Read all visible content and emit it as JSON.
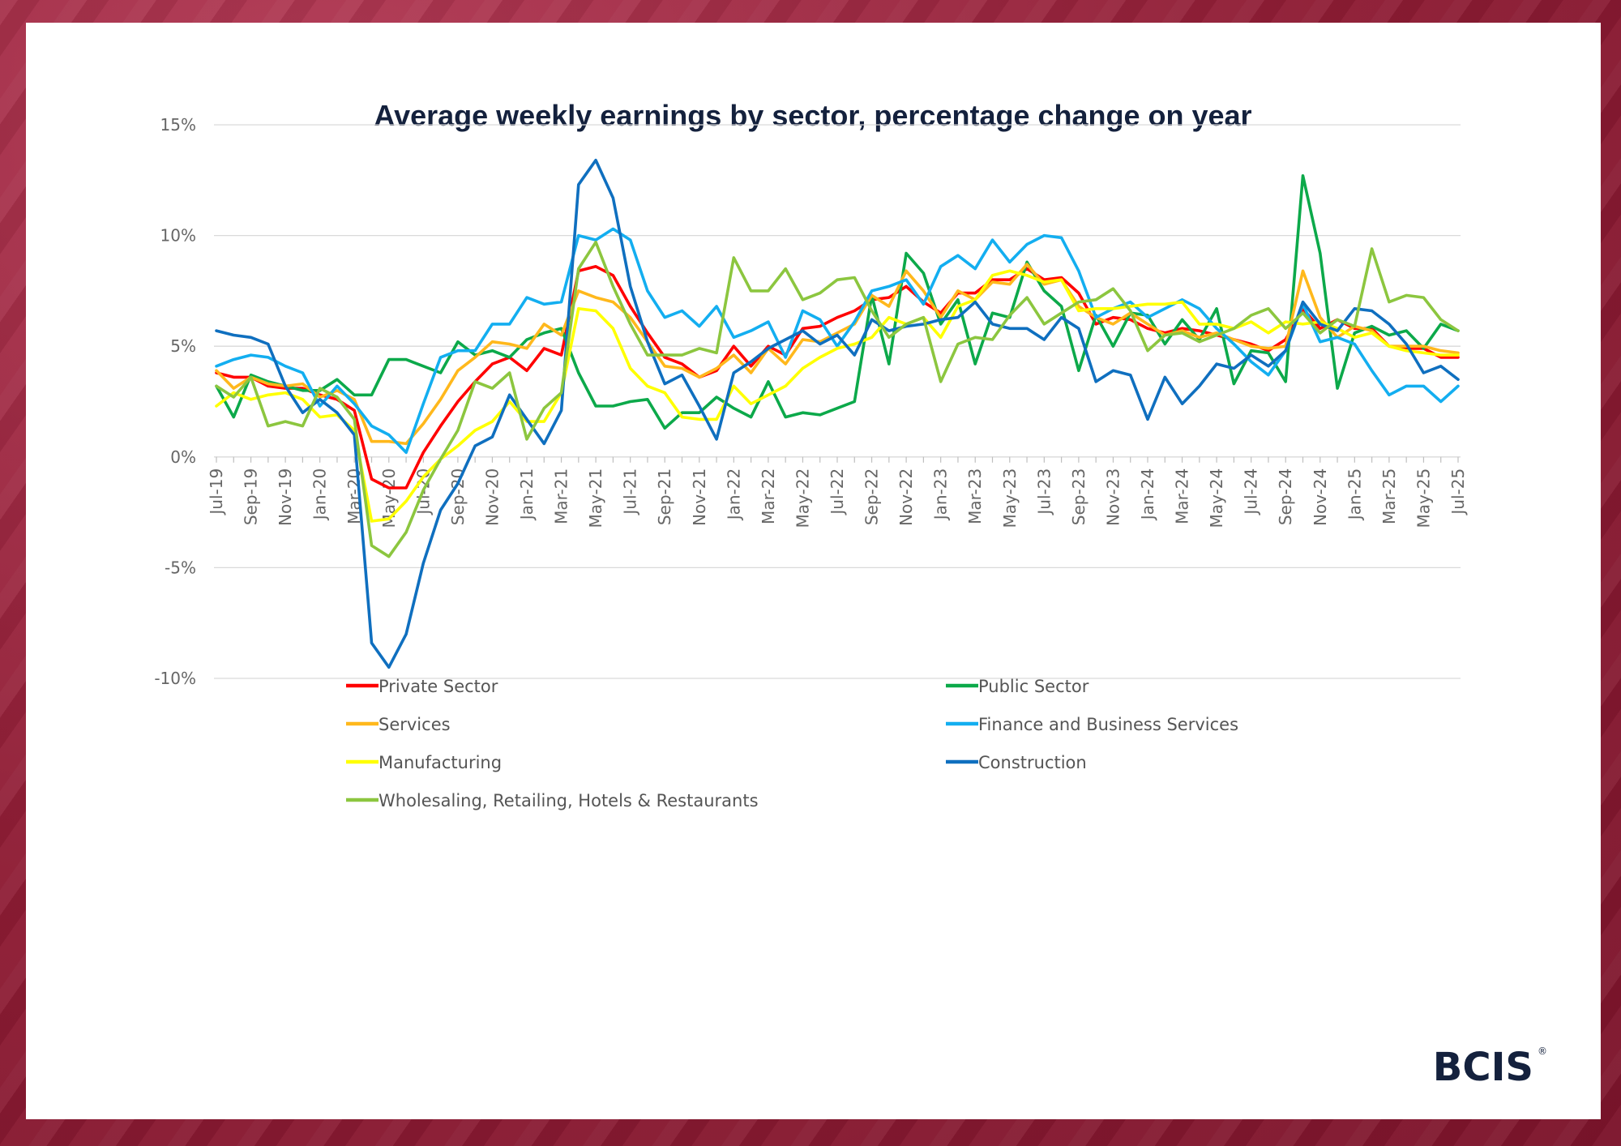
{
  "chart_data": {
    "type": "line",
    "title": "Average weekly earnings by sector, percentage change on year",
    "ylim": [
      -10,
      15
    ],
    "yticks": [
      15,
      10,
      5,
      0,
      -5,
      -10
    ],
    "ytick_labels": [
      "15%",
      "10%",
      "5%",
      "0%",
      "-5%",
      "-10%"
    ],
    "x": [
      "Jul-19",
      "Aug-19",
      "Sep-19",
      "Oct-19",
      "Nov-19",
      "Dec-19",
      "Jan-20",
      "Feb-20",
      "Mar-20",
      "Apr-20",
      "May-20",
      "Jun-20",
      "Jul-20",
      "Aug-20",
      "Sep-20",
      "Oct-20",
      "Nov-20",
      "Dec-20",
      "Jan-21",
      "Feb-21",
      "Mar-21",
      "Apr-21",
      "May-21",
      "Jun-21",
      "Jul-21",
      "Aug-21",
      "Sep-21",
      "Oct-21",
      "Nov-21",
      "Dec-21",
      "Jan-22",
      "Feb-22",
      "Mar-22",
      "Apr-22",
      "May-22",
      "Jun-22",
      "Jul-22",
      "Aug-22",
      "Sep-22",
      "Oct-22",
      "Nov-22",
      "Dec-22",
      "Jan-23",
      "Feb-23",
      "Mar-23",
      "Apr-23",
      "May-23",
      "Jun-23",
      "Jul-23",
      "Aug-23",
      "Sep-23",
      "Oct-23",
      "Nov-23",
      "Dec-23",
      "Jan-24",
      "Feb-24",
      "Mar-24",
      "Apr-24",
      "May-24",
      "Jun-24",
      "Jul-24",
      "Aug-24",
      "Sep-24",
      "Oct-24",
      "Nov-24",
      "Dec-24",
      "Jan-25",
      "Feb-25",
      "Mar-25",
      "Apr-25",
      "May-25",
      "Jun-25",
      "Jul-25"
    ],
    "x_tick_labels": [
      "Jul-19",
      "Sep-19",
      "Nov-19",
      "Jan-20",
      "Mar-20",
      "May-20",
      "Jul-20",
      "Sep-20",
      "Nov-20",
      "Jan-21",
      "Mar-21",
      "May-21",
      "Jul-21",
      "Sep-21",
      "Nov-21",
      "Jan-22",
      "Mar-22",
      "May-22",
      "Jul-22",
      "Sep-22",
      "Nov-22",
      "Jan-23",
      "Mar-23",
      "May-23",
      "Jul-23",
      "Sep-23",
      "Nov-23",
      "Jan-24",
      "Mar-24",
      "May-24",
      "Jul-24",
      "Sep-24",
      "Nov-24",
      "Jan-25",
      "Mar-25",
      "May-25",
      "Jul-25"
    ],
    "grid": true,
    "legend_position": "bottom",
    "series": [
      {
        "name": "Private Sector",
        "color": "#ff0000",
        "values": [
          3.8,
          3.6,
          3.6,
          3.2,
          3.1,
          3.1,
          2.8,
          2.6,
          2.1,
          -1.0,
          -1.4,
          -1.4,
          0.2,
          1.4,
          2.5,
          3.4,
          4.2,
          4.5,
          3.9,
          4.9,
          4.6,
          8.4,
          8.6,
          8.2,
          6.8,
          5.6,
          4.5,
          4.2,
          3.6,
          3.9,
          5.0,
          4.1,
          5.0,
          4.6,
          5.8,
          5.9,
          6.3,
          6.6,
          7.1,
          7.2,
          7.7,
          7.0,
          6.5,
          7.4,
          7.4,
          8.0,
          8.0,
          8.5,
          8.0,
          8.1,
          7.4,
          6.0,
          6.3,
          6.2,
          5.8,
          5.6,
          5.8,
          5.7,
          5.5,
          5.3,
          5.1,
          4.8,
          5.3,
          6.7,
          5.8,
          6.2,
          5.8,
          5.8,
          5.0,
          4.9,
          4.9,
          4.5,
          4.5
        ]
      },
      {
        "name": "Public Sector",
        "color": "#0ca94a",
        "values": [
          3.2,
          1.8,
          3.7,
          3.4,
          3.2,
          3.0,
          3.0,
          3.5,
          2.8,
          2.8,
          4.4,
          4.4,
          4.1,
          3.8,
          5.2,
          4.6,
          4.8,
          4.5,
          5.3,
          5.6,
          5.8,
          3.8,
          2.3,
          2.3,
          2.5,
          2.6,
          1.3,
          2.0,
          2.0,
          2.7,
          2.2,
          1.8,
          3.4,
          1.8,
          2.0,
          1.9,
          2.2,
          2.5,
          7.3,
          4.2,
          9.2,
          8.3,
          6.0,
          7.1,
          4.2,
          6.5,
          6.3,
          8.8,
          7.5,
          6.8,
          3.9,
          6.4,
          5.0,
          6.5,
          6.4,
          5.1,
          6.2,
          5.3,
          6.7,
          3.3,
          4.8,
          4.7,
          3.4,
          12.7,
          9.2,
          3.1,
          5.6,
          5.9,
          5.5,
          5.7,
          4.9,
          6.0,
          5.7
        ]
      },
      {
        "name": "Services",
        "color": "#ffb81c",
        "values": [
          3.9,
          3.1,
          3.6,
          3.3,
          3.2,
          3.3,
          2.7,
          3.0,
          2.6,
          0.7,
          0.7,
          0.6,
          1.5,
          2.6,
          3.9,
          4.5,
          5.2,
          5.1,
          4.9,
          6.0,
          5.5,
          7.5,
          7.2,
          7.0,
          6.3,
          5.2,
          4.1,
          4.0,
          3.6,
          4.0,
          4.6,
          3.8,
          4.9,
          4.2,
          5.3,
          5.2,
          5.6,
          6.0,
          7.3,
          6.8,
          8.4,
          7.5,
          6.3,
          7.5,
          7.1,
          7.9,
          7.8,
          8.7,
          7.8,
          8.0,
          6.8,
          6.3,
          6.0,
          6.5,
          6.0,
          5.5,
          5.7,
          5.4,
          5.6,
          5.3,
          5.0,
          4.9,
          5.0,
          8.4,
          6.3,
          5.4,
          5.9,
          5.7,
          5.0,
          5.0,
          5.0,
          4.8,
          4.7
        ]
      },
      {
        "name": "Finance and Business Services",
        "color": "#13aef0",
        "values": [
          4.1,
          4.4,
          4.6,
          4.5,
          4.1,
          3.8,
          2.3,
          3.2,
          2.4,
          1.4,
          1.0,
          0.2,
          2.4,
          4.5,
          4.8,
          4.8,
          6.0,
          6.0,
          7.2,
          6.9,
          7.0,
          10.0,
          9.8,
          10.3,
          9.8,
          7.5,
          6.3,
          6.6,
          5.9,
          6.8,
          5.4,
          5.7,
          6.1,
          4.5,
          6.6,
          6.2,
          5.0,
          6.1,
          7.5,
          7.7,
          8.0,
          6.9,
          8.6,
          9.1,
          8.5,
          9.8,
          8.8,
          9.6,
          10.0,
          9.9,
          8.4,
          6.3,
          6.7,
          7.0,
          6.3,
          6.7,
          7.1,
          6.7,
          5.8,
          5.1,
          4.3,
          3.7,
          4.8,
          6.9,
          5.2,
          5.4,
          5.1,
          3.9,
          2.8,
          3.2,
          3.2,
          2.5,
          3.2
        ]
      },
      {
        "name": "Manufacturing",
        "color": "#ffff00",
        "values": [
          2.3,
          2.9,
          2.6,
          2.8,
          2.9,
          2.6,
          1.8,
          1.9,
          1.2,
          -2.9,
          -2.8,
          -2.0,
          -0.9,
          -0.1,
          0.5,
          1.2,
          1.6,
          2.5,
          1.6,
          1.6,
          2.9,
          6.7,
          6.6,
          5.8,
          4.0,
          3.2,
          2.9,
          1.8,
          1.7,
          1.7,
          3.2,
          2.4,
          2.8,
          3.2,
          4.0,
          4.5,
          4.9,
          5.1,
          5.4,
          6.3,
          6.0,
          6.3,
          5.4,
          6.8,
          7.1,
          8.2,
          8.4,
          8.2,
          7.9,
          8.0,
          6.6,
          6.7,
          6.7,
          6.8,
          6.9,
          6.9,
          7.0,
          6.0,
          6.0,
          5.8,
          6.1,
          5.6,
          6.1,
          6.0,
          6.1,
          5.8,
          5.4,
          5.6,
          5.0,
          4.8,
          4.7,
          4.6,
          4.6
        ]
      },
      {
        "name": "Construction",
        "color": "#0f6fbf",
        "values": [
          5.7,
          5.5,
          5.4,
          5.1,
          3.2,
          2.0,
          2.6,
          2.0,
          1.0,
          -8.4,
          -9.5,
          -8.0,
          -4.8,
          -2.4,
          -1.2,
          0.5,
          0.9,
          2.8,
          1.7,
          0.6,
          2.1,
          12.3,
          13.4,
          11.7,
          7.7,
          5.2,
          3.3,
          3.7,
          2.3,
          0.8,
          3.8,
          4.3,
          4.9,
          5.3,
          5.7,
          5.1,
          5.5,
          4.6,
          6.2,
          5.7,
          5.9,
          6.0,
          6.2,
          6.3,
          7.0,
          6.0,
          5.8,
          5.8,
          5.3,
          6.3,
          5.8,
          3.4,
          3.9,
          3.7,
          1.7,
          3.6,
          2.4,
          3.2,
          4.2,
          4.0,
          4.6,
          4.1,
          4.8,
          7.0,
          6.0,
          5.7,
          6.7,
          6.6,
          6.0,
          5.1,
          3.8,
          4.1,
          3.5
        ]
      },
      {
        "name": "Wholesaling, Retailing, Hotels & Restaurants",
        "color": "#8cc63f",
        "values": [
          3.2,
          2.7,
          3.6,
          1.4,
          1.6,
          1.4,
          3.1,
          2.7,
          1.7,
          -4.0,
          -4.5,
          -3.4,
          -1.5,
          -0.1,
          1.2,
          3.4,
          3.1,
          3.8,
          0.8,
          2.2,
          2.9,
          8.5,
          9.7,
          7.7,
          6.0,
          4.6,
          4.6,
          4.6,
          4.9,
          4.7,
          9.0,
          7.5,
          7.5,
          8.5,
          7.1,
          7.4,
          8.0,
          8.1,
          6.6,
          5.4,
          6.0,
          6.3,
          3.4,
          5.1,
          5.4,
          5.3,
          6.4,
          7.2,
          6.0,
          6.5,
          7.0,
          7.1,
          7.6,
          6.6,
          4.8,
          5.5,
          5.6,
          5.2,
          5.5,
          5.8,
          6.4,
          6.7,
          5.8,
          6.5,
          5.6,
          6.2,
          5.9,
          9.4,
          7.0,
          7.3,
          7.2,
          6.2,
          5.7
        ]
      }
    ]
  },
  "logo": {
    "text": "BCIS",
    "mark": "®"
  }
}
